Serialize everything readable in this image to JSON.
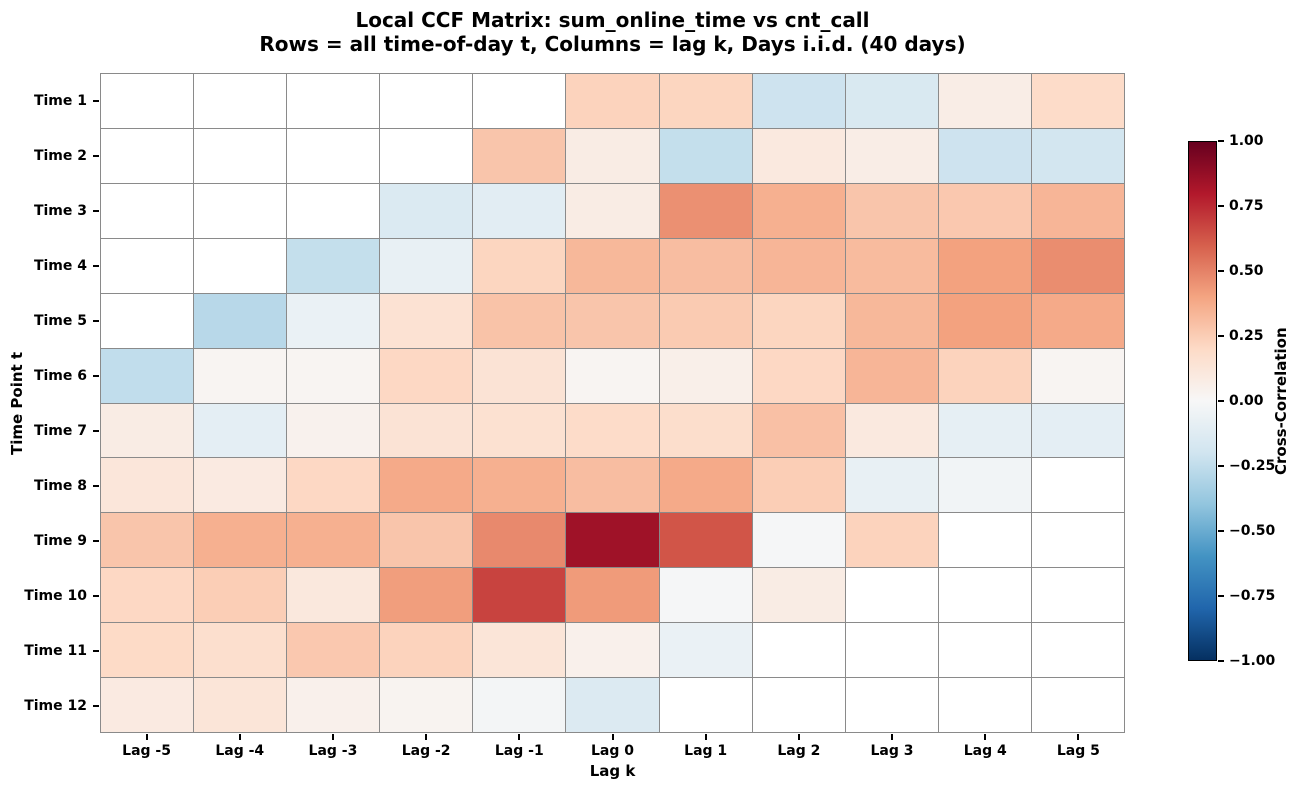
{
  "chart_data": {
    "type": "heatmap",
    "title": "Local CCF Matrix: sum_online_time vs cnt_call",
    "subtitle": "Rows = all time-of-day t, Columns = lag k, Days i.i.d. (40 days)",
    "xlabel": "Lag k",
    "ylabel": "Time Point t",
    "x_categories": [
      "Lag -5",
      "Lag -4",
      "Lag -3",
      "Lag -2",
      "Lag -1",
      "Lag 0",
      "Lag 1",
      "Lag 2",
      "Lag 3",
      "Lag 4",
      "Lag 5"
    ],
    "y_categories": [
      "Time 1",
      "Time 2",
      "Time 3",
      "Time 4",
      "Time 5",
      "Time 6",
      "Time 7",
      "Time 8",
      "Time 9",
      "Time 10",
      "Time 11",
      "Time 12"
    ],
    "values": [
      [
        null,
        null,
        null,
        null,
        null,
        0.23,
        0.22,
        -0.21,
        -0.16,
        0.07,
        0.19
      ],
      [
        null,
        null,
        null,
        null,
        0.28,
        0.08,
        -0.24,
        0.1,
        0.07,
        -0.21,
        -0.19
      ],
      [
        null,
        null,
        null,
        -0.15,
        -0.11,
        0.08,
        0.46,
        0.36,
        0.28,
        0.27,
        0.34
      ],
      [
        null,
        null,
        -0.24,
        -0.08,
        0.22,
        0.33,
        0.31,
        0.34,
        0.32,
        0.41,
        0.47
      ],
      [
        null,
        -0.28,
        -0.07,
        0.15,
        0.29,
        0.28,
        0.26,
        0.22,
        0.33,
        0.41,
        0.38
      ],
      [
        -0.25,
        0.02,
        0.02,
        0.21,
        0.14,
        0.02,
        0.06,
        0.21,
        0.34,
        0.23,
        0.02
      ],
      [
        0.08,
        -0.1,
        0.04,
        0.14,
        0.16,
        0.19,
        0.18,
        0.3,
        0.1,
        -0.09,
        -0.1
      ],
      [
        0.12,
        0.09,
        0.21,
        0.38,
        0.36,
        0.31,
        0.38,
        0.25,
        -0.08,
        -0.03,
        null
      ],
      [
        0.28,
        0.36,
        0.36,
        0.28,
        0.48,
        0.85,
        0.63,
        -0.01,
        0.23,
        null,
        null
      ],
      [
        0.21,
        0.25,
        0.11,
        0.42,
        0.68,
        0.43,
        -0.01,
        0.08,
        null,
        null,
        null
      ],
      [
        0.2,
        0.17,
        0.27,
        0.23,
        0.13,
        0.05,
        -0.07,
        null,
        null,
        null,
        null
      ],
      [
        0.09,
        0.13,
        0.05,
        0.03,
        -0.02,
        -0.14,
        null,
        null,
        null,
        null,
        null
      ]
    ],
    "value_range": [
      -1,
      1
    ],
    "colormap": "RdBu_r",
    "nan_color": "#ffffff",
    "grid_line_color": "#8a8a8a",
    "legend_position": "right",
    "colorbar": {
      "label": "Cross-Correlation",
      "tick_labels": [
        "1.00",
        "0.75",
        "0.50",
        "0.25",
        "0.00",
        "−0.25",
        "−0.50",
        "−0.75",
        "−1.00"
      ],
      "tick_values": [
        1,
        0.75,
        0.5,
        0.25,
        0,
        -0.25,
        -0.5,
        -0.75,
        -1
      ]
    }
  }
}
